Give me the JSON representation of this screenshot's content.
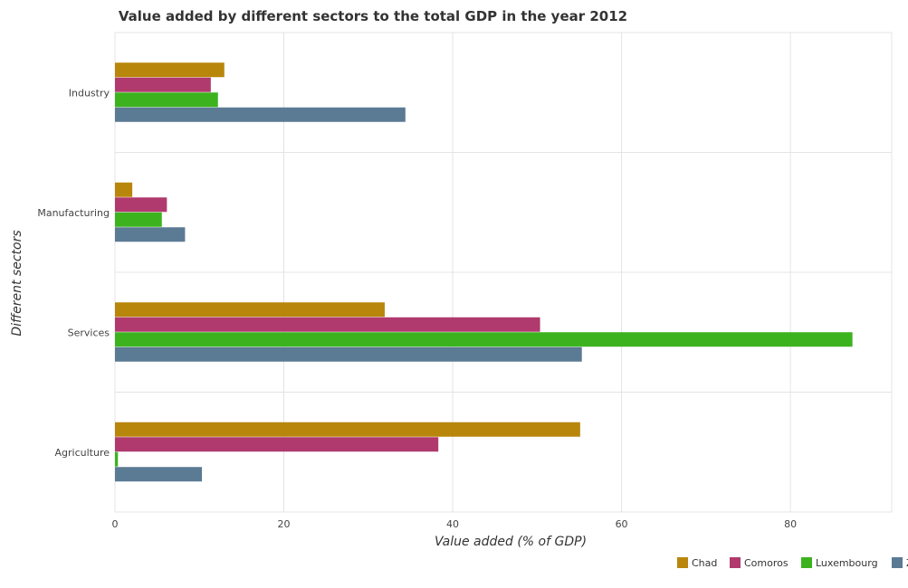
{
  "chart_data": {
    "type": "bar",
    "orientation": "horizontal",
    "title": "Value added by different sectors to the total GDP in the year 2012",
    "xlabel": "Value added (% of GDP)",
    "ylabel": "Different sectors",
    "categories": [
      "Industry",
      "Manufacturing",
      "Services",
      "Agriculture"
    ],
    "xlim": [
      0,
      92
    ],
    "xticks": [
      0,
      20,
      40,
      60,
      80
    ],
    "grid": true,
    "legend_position": "bottom-right",
    "series": [
      {
        "name": "Chad",
        "color": "#b8860b",
        "values": [
          12.95,
          2.05,
          31.95,
          55.1
        ]
      },
      {
        "name": "Comoros",
        "color": "#b03a6e",
        "values": [
          11.35,
          6.15,
          50.35,
          38.3
        ]
      },
      {
        "name": "Luxembourg",
        "color": "#3cb31e",
        "values": [
          12.2,
          5.55,
          87.35,
          0.35
        ]
      },
      {
        "name": "Zambia",
        "color": "#5b7a94",
        "values": [
          34.4,
          8.3,
          55.3,
          10.3
        ]
      }
    ]
  }
}
